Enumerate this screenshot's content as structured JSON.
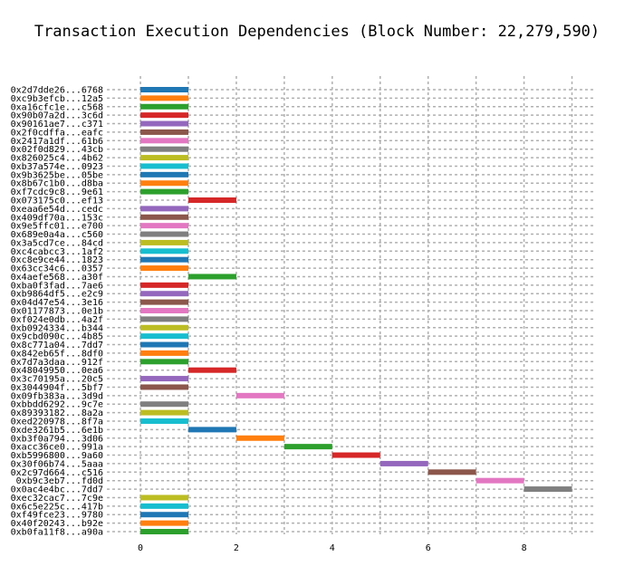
{
  "chart_data": {
    "type": "bar",
    "orientation": "horizontal",
    "title": "Transaction Execution Dependencies (Block Number: 22,279,590)",
    "xlabel": "",
    "ylabel": "",
    "xlim": [
      -0.7,
      9.5
    ],
    "xticks": [
      0,
      2,
      4,
      6,
      8
    ],
    "grid": true,
    "legend": "none",
    "palette": [
      "#1f77b4",
      "#ff7f0e",
      "#2ca02c",
      "#d62728",
      "#9467bd",
      "#8c564b",
      "#e377c2",
      "#7f7f7f",
      "#bcbd22",
      "#17becf"
    ],
    "transactions": [
      {
        "label": "0x2d7dde26...6768",
        "start": 0,
        "end": 1
      },
      {
        "label": "0xc9b3efcb...12a5",
        "start": 0,
        "end": 1
      },
      {
        "label": "0xa16cfc1e...c568",
        "start": 0,
        "end": 1
      },
      {
        "label": "0x90b07a2d...3c6d",
        "start": 0,
        "end": 1
      },
      {
        "label": "0x90161ae7...c371",
        "start": 0,
        "end": 1
      },
      {
        "label": "0x2f0cdffa...eafc",
        "start": 0,
        "end": 1
      },
      {
        "label": "0x2417a1df...61b6",
        "start": 0,
        "end": 1
      },
      {
        "label": "0x02f0d829...43cb",
        "start": 0,
        "end": 1
      },
      {
        "label": "0x826025c4...4b62",
        "start": 0,
        "end": 1
      },
      {
        "label": "0xb37a574e...0923",
        "start": 0,
        "end": 1
      },
      {
        "label": "0x9b3625be...05be",
        "start": 0,
        "end": 1
      },
      {
        "label": "0x8b67c1b0...d8ba",
        "start": 0,
        "end": 1
      },
      {
        "label": "0xf7cdc9c8...9e61",
        "start": 0,
        "end": 1
      },
      {
        "label": "0x073175c0...ef13",
        "start": 1,
        "end": 2
      },
      {
        "label": "0xeaa6e54d...cedc",
        "start": 0,
        "end": 1
      },
      {
        "label": "0x409df70a...153c",
        "start": 0,
        "end": 1
      },
      {
        "label": "0x9e5ffc01...e700",
        "start": 0,
        "end": 1
      },
      {
        "label": "0x689e0a4a...c560",
        "start": 0,
        "end": 1
      },
      {
        "label": "0x3a5cd7ce...84cd",
        "start": 0,
        "end": 1
      },
      {
        "label": "0xc4cabcc3...1af2",
        "start": 0,
        "end": 1
      },
      {
        "label": "0xc8e9ce44...1823",
        "start": 0,
        "end": 1
      },
      {
        "label": "0x63cc34c6...0357",
        "start": 0,
        "end": 1
      },
      {
        "label": "0x4aefe568...a30f",
        "start": 1,
        "end": 2
      },
      {
        "label": "0xba0f3fad...7ae6",
        "start": 0,
        "end": 1
      },
      {
        "label": "0xb9864df5...e2c9",
        "start": 0,
        "end": 1
      },
      {
        "label": "0x04d47e54...3e16",
        "start": 0,
        "end": 1
      },
      {
        "label": "0x01177873...0e1b",
        "start": 0,
        "end": 1
      },
      {
        "label": "0xf024e0db...4a2f",
        "start": 0,
        "end": 1
      },
      {
        "label": "0xb0924334...b344",
        "start": 0,
        "end": 1
      },
      {
        "label": "0x9cbd090c...4b85",
        "start": 0,
        "end": 1
      },
      {
        "label": "0x8c771a04...7dd7",
        "start": 0,
        "end": 1
      },
      {
        "label": "0x842eb65f...8df0",
        "start": 0,
        "end": 1
      },
      {
        "label": "0x7d7a3daa...912f",
        "start": 0,
        "end": 1
      },
      {
        "label": "0x48049950...0ea6",
        "start": 1,
        "end": 2
      },
      {
        "label": "0x3c70195a...20c5",
        "start": 0,
        "end": 1
      },
      {
        "label": "0x3044904f...5bf7",
        "start": 0,
        "end": 1
      },
      {
        "label": "0x09fb383a...3d9d",
        "start": 2,
        "end": 3
      },
      {
        "label": "0xbbdd6292...9c7e",
        "start": 0,
        "end": 1
      },
      {
        "label": "0x89393182...8a2a",
        "start": 0,
        "end": 1
      },
      {
        "label": "0xed220978...8f7a",
        "start": 0,
        "end": 1
      },
      {
        "label": "0xde3261b5...6e1b",
        "start": 1,
        "end": 2
      },
      {
        "label": "0xb3f0a794...3d06",
        "start": 2,
        "end": 3
      },
      {
        "label": "0xacc36ce0...991a",
        "start": 3,
        "end": 4
      },
      {
        "label": "0xb5996800...9a60",
        "start": 4,
        "end": 5
      },
      {
        "label": "0x30f06b74...5aaa",
        "start": 5,
        "end": 6
      },
      {
        "label": "0x2c97d664...c516",
        "start": 6,
        "end": 7
      },
      {
        "label": "0xb9c3eb7...fd0d",
        "start": 7,
        "end": 8
      },
      {
        "label": "0x0ac4e4bc...7dd7",
        "start": 8,
        "end": 9
      },
      {
        "label": "0xec32cac7...7c9e",
        "start": 0,
        "end": 1
      },
      {
        "label": "0x6c5e225c...417b",
        "start": 0,
        "end": 1
      },
      {
        "label": "0xf49fce23...9780",
        "start": 0,
        "end": 1
      },
      {
        "label": "0x40f20243...b92e",
        "start": 0,
        "end": 1
      },
      {
        "label": "0xb0fa11f8...a90a",
        "start": 0,
        "end": 1
      }
    ]
  }
}
